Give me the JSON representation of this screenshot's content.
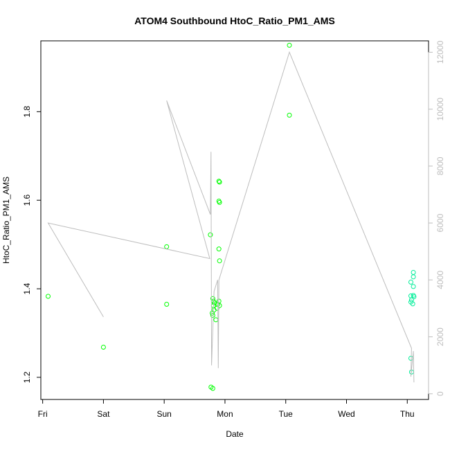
{
  "chart_data": {
    "type": "scatter",
    "title": "ATOM4 Southbound HtoC_Ratio_PM1_AMS",
    "xlabel": "Date",
    "ylabel": "HtoC_Ratio_PM1_AMS",
    "y2label": "",
    "x_ticks": [
      "Fri",
      "Sat",
      "Sun",
      "Mon",
      "Tue",
      "Wed",
      "Thu"
    ],
    "y_ticks": [
      "1.2",
      "1.4",
      "1.6",
      "1.8"
    ],
    "y2_ticks": [
      "0",
      "2000",
      "4000",
      "6000",
      "8000",
      "10000",
      "12000"
    ],
    "ylim": [
      1.15,
      1.96
    ],
    "y2lim": [
      -200,
      12400
    ],
    "xlim": [
      -0.03,
      6.35
    ],
    "grid": false,
    "series": [
      {
        "type": "scatter",
        "color": "#00ff00",
        "points": [
          [
            0.09,
            1.383
          ],
          [
            1.0,
            1.268
          ],
          [
            2.04,
            1.495
          ],
          [
            2.04,
            1.365
          ],
          [
            2.76,
            1.522
          ],
          [
            2.8,
            1.378
          ],
          [
            2.81,
            1.362
          ],
          [
            2.82,
            1.352
          ],
          [
            2.8,
            1.34
          ],
          [
            2.79,
            1.345
          ],
          [
            2.83,
            1.368
          ],
          [
            2.81,
            1.372
          ],
          [
            2.85,
            1.33
          ],
          [
            2.87,
            1.356
          ],
          [
            2.88,
            1.365
          ],
          [
            2.77,
            1.178
          ],
          [
            2.8,
            1.175
          ],
          [
            2.9,
            1.643
          ],
          [
            2.91,
            1.641
          ],
          [
            2.9,
            1.598
          ],
          [
            2.91,
            1.595
          ],
          [
            2.9,
            1.49
          ],
          [
            2.91,
            1.463
          ],
          [
            2.9,
            1.372
          ],
          [
            2.91,
            1.362
          ],
          [
            4.06,
            1.95
          ],
          [
            4.06,
            1.792
          ]
        ]
      },
      {
        "type": "scatter",
        "color": "#00ee99",
        "points": [
          [
            6.06,
            1.243
          ],
          [
            6.07,
            1.212
          ],
          [
            6.06,
            1.415
          ],
          [
            6.06,
            1.384
          ],
          [
            6.07,
            1.375
          ],
          [
            6.06,
            1.37
          ],
          [
            6.1,
            1.437
          ],
          [
            6.1,
            1.427
          ],
          [
            6.1,
            1.405
          ],
          [
            6.1,
            1.385
          ],
          [
            6.11,
            1.382
          ],
          [
            6.09,
            1.366
          ]
        ]
      },
      {
        "type": "line",
        "axis": "right",
        "color": "#bdbdbd",
        "points": [
          [
            0.09,
            6000
          ],
          [
            1.0,
            2700
          ],
          [
            0.09,
            6000
          ],
          [
            2.75,
            4750
          ],
          [
            2.04,
            10300
          ],
          [
            2.76,
            6300
          ],
          [
            2.77,
            8500
          ],
          [
            2.78,
            1000
          ],
          [
            2.82,
            3600
          ],
          [
            2.88,
            4000
          ],
          [
            2.89,
            900
          ],
          [
            2.9,
            4000
          ],
          [
            4.06,
            12000
          ],
          [
            6.07,
            1600
          ],
          [
            6.06,
            600
          ],
          [
            6.1,
            1500
          ],
          [
            6.11,
            400
          ]
        ]
      }
    ]
  }
}
